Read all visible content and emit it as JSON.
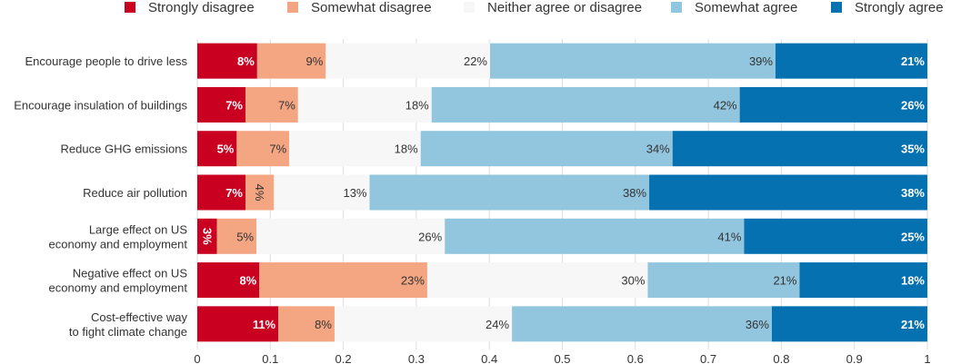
{
  "chart_data": {
    "type": "bar",
    "orientation": "horizontal",
    "stacked": true,
    "categories": [
      [
        "Encourage people to drive less"
      ],
      [
        "Encourage insulation of buildings"
      ],
      [
        "Reduce GHG emissions"
      ],
      [
        "Reduce air pollution"
      ],
      [
        "Large effect on US",
        "economy and employment"
      ],
      [
        "Negative effect on US",
        "economy and employment"
      ],
      [
        "Cost-effective way",
        "to fight climate change"
      ]
    ],
    "series": [
      {
        "name": "Strongly disagree",
        "color": "#ca0020",
        "values": [
          0.082,
          0.066,
          0.054,
          0.066,
          0.027,
          0.085,
          0.111
        ],
        "labels": [
          "8%",
          "7%",
          "5%",
          "7%",
          "3%",
          "8%",
          "11%"
        ]
      },
      {
        "name": "Somewhat disagree",
        "color": "#f4a582",
        "values": [
          0.094,
          0.072,
          0.072,
          0.039,
          0.054,
          0.23,
          0.077
        ],
        "labels": [
          "9%",
          "7%",
          "7%",
          "4%",
          "5%",
          "23%",
          "8%"
        ]
      },
      {
        "name": "Neither agree or disagree",
        "color": "#f7f7f7",
        "values": [
          0.225,
          0.183,
          0.18,
          0.131,
          0.258,
          0.302,
          0.243
        ],
        "labels": [
          "22%",
          "18%",
          "18%",
          "13%",
          "26%",
          "30%",
          "24%"
        ]
      },
      {
        "name": "Somewhat agree",
        "color": "#92c5de",
        "values": [
          0.391,
          0.422,
          0.345,
          0.383,
          0.41,
          0.208,
          0.356
        ],
        "labels": [
          "39%",
          "42%",
          "34%",
          "38%",
          "41%",
          "21%",
          "36%"
        ]
      },
      {
        "name": "Strongly agree",
        "color": "#0571b0",
        "values": [
          0.208,
          0.257,
          0.349,
          0.381,
          0.251,
          0.175,
          0.213
        ],
        "labels": [
          "21%",
          "26%",
          "35%",
          "38%",
          "25%",
          "18%",
          "21%"
        ]
      }
    ],
    "xticks": [
      "0",
      "0.1",
      "0.2",
      "0.3",
      "0.4",
      "0.5",
      "0.6",
      "0.7",
      "0.8",
      "0.9",
      "1"
    ],
    "xlim": [
      0,
      1
    ],
    "grid": true,
    "legend_position": "top"
  }
}
